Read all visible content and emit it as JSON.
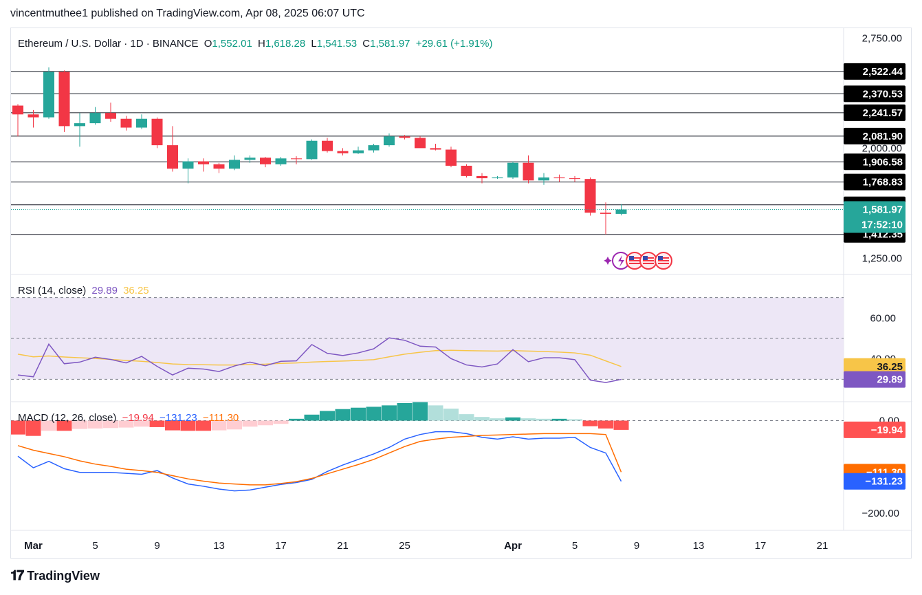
{
  "header": {
    "published": "vincentmuthee1 published on TradingView.com, Apr 08, 2025 06:07 UTC"
  },
  "footer": {
    "brand": "TradingView",
    "logo_icon": "tradingview-logo-icon"
  },
  "colors": {
    "up": "#26a69a",
    "down": "#f23645",
    "rsi": "#7e57c2",
    "rsi_ma": "#f7c548",
    "macd": "#2962ff",
    "signal": "#ff6d00",
    "hist_up_strong": "#26a69a",
    "hist_up_weak": "#b2dfdb",
    "hist_down_strong": "#ff5252",
    "hist_down_weak": "#ffcdd2",
    "rsi_band": "#ede7f6"
  },
  "chart_data": [
    {
      "type": "candlestick",
      "title": "Ethereum / U.S. Dollar · 1D · BINANCE",
      "ohlc_legend": {
        "open_label": "O",
        "open": "1,552.01",
        "high_label": "H",
        "high": "1,618.28",
        "low_label": "L",
        "low": "1,541.53",
        "close_label": "C",
        "close": "1,581.97",
        "change": "+29.61 (+1.91%)"
      },
      "x_tick_labels": [
        {
          "i": 1,
          "label": "Mar"
        },
        {
          "i": 5,
          "label": "5"
        },
        {
          "i": 9,
          "label": "9"
        },
        {
          "i": 13,
          "label": "13"
        },
        {
          "i": 17,
          "label": "17"
        },
        {
          "i": 21,
          "label": "21"
        },
        {
          "i": 25,
          "label": "25"
        },
        {
          "i": 32,
          "label": "Apr"
        },
        {
          "i": 36,
          "label": "5"
        },
        {
          "i": 40,
          "label": "9"
        },
        {
          "i": 44,
          "label": "13"
        },
        {
          "i": 48,
          "label": "17"
        },
        {
          "i": 52,
          "label": "21"
        }
      ],
      "y_tick_labels": [
        "2,750.00",
        "2,000.00",
        "1,250.00"
      ],
      "ylim": [
        1200,
        2780
      ],
      "horizontal_levels": [
        2522.44,
        2370.53,
        2241.57,
        2081.9,
        1906.58,
        1768.83,
        1613.81,
        1412.35
      ],
      "level_labels": [
        "2,522.44",
        "2,370.53",
        "2,241.57",
        "2,081.90",
        "1,906.58",
        "1,768.83",
        "1,613.81",
        "1,412.35"
      ],
      "last_price": {
        "value": 1581.97,
        "label": "1,581.97",
        "countdown": "17:52:10"
      },
      "candles": [
        {
          "o": 2290,
          "h": 2300,
          "l": 2080,
          "c": 2230
        },
        {
          "o": 2230,
          "h": 2260,
          "l": 2140,
          "c": 2210
        },
        {
          "o": 2210,
          "h": 2550,
          "l": 2200,
          "c": 2520
        },
        {
          "o": 2520,
          "h": 2530,
          "l": 2110,
          "c": 2150
        },
        {
          "o": 2150,
          "h": 2240,
          "l": 2010,
          "c": 2170
        },
        {
          "o": 2170,
          "h": 2280,
          "l": 2160,
          "c": 2240
        },
        {
          "o": 2240,
          "h": 2310,
          "l": 2180,
          "c": 2200
        },
        {
          "o": 2200,
          "h": 2220,
          "l": 2120,
          "c": 2140
        },
        {
          "o": 2140,
          "h": 2230,
          "l": 2130,
          "c": 2200
        },
        {
          "o": 2200,
          "h": 2210,
          "l": 2000,
          "c": 2020
        },
        {
          "o": 2020,
          "h": 2150,
          "l": 1840,
          "c": 1860
        },
        {
          "o": 1860,
          "h": 1930,
          "l": 1760,
          "c": 1910
        },
        {
          "o": 1910,
          "h": 1930,
          "l": 1840,
          "c": 1890
        },
        {
          "o": 1890,
          "h": 1900,
          "l": 1830,
          "c": 1860
        },
        {
          "o": 1860,
          "h": 1950,
          "l": 1850,
          "c": 1920
        },
        {
          "o": 1920,
          "h": 1950,
          "l": 1900,
          "c": 1935
        },
        {
          "o": 1935,
          "h": 1940,
          "l": 1870,
          "c": 1890
        },
        {
          "o": 1890,
          "h": 1940,
          "l": 1880,
          "c": 1930
        },
        {
          "o": 1930,
          "h": 1945,
          "l": 1890,
          "c": 1925
        },
        {
          "o": 1925,
          "h": 2060,
          "l": 1920,
          "c": 2050
        },
        {
          "o": 2050,
          "h": 2070,
          "l": 1970,
          "c": 1980
        },
        {
          "o": 1980,
          "h": 2000,
          "l": 1950,
          "c": 1965
        },
        {
          "o": 1965,
          "h": 2010,
          "l": 1960,
          "c": 1985
        },
        {
          "o": 1985,
          "h": 2030,
          "l": 1970,
          "c": 2020
        },
        {
          "o": 2020,
          "h": 2100,
          "l": 2010,
          "c": 2080
        },
        {
          "o": 2080,
          "h": 2090,
          "l": 2060,
          "c": 2070
        },
        {
          "o": 2070,
          "h": 2080,
          "l": 2010,
          "c": 2000
        },
        {
          "o": 2000,
          "h": 2030,
          "l": 1985,
          "c": 1990
        },
        {
          "o": 1990,
          "h": 2010,
          "l": 1870,
          "c": 1880
        },
        {
          "o": 1880,
          "h": 1890,
          "l": 1800,
          "c": 1810
        },
        {
          "o": 1810,
          "h": 1830,
          "l": 1760,
          "c": 1795
        },
        {
          "o": 1795,
          "h": 1810,
          "l": 1790,
          "c": 1800
        },
        {
          "o": 1800,
          "h": 1910,
          "l": 1790,
          "c": 1900
        },
        {
          "o": 1900,
          "h": 1950,
          "l": 1760,
          "c": 1780
        },
        {
          "o": 1780,
          "h": 1830,
          "l": 1750,
          "c": 1800
        },
        {
          "o": 1800,
          "h": 1820,
          "l": 1770,
          "c": 1795
        },
        {
          "o": 1795,
          "h": 1810,
          "l": 1770,
          "c": 1790
        },
        {
          "o": 1790,
          "h": 1800,
          "l": 1540,
          "c": 1560
        },
        {
          "o": 1560,
          "h": 1630,
          "l": 1412,
          "c": 1552
        },
        {
          "o": 1552.01,
          "h": 1618.28,
          "l": 1541.53,
          "c": 1581.97
        }
      ]
    },
    {
      "type": "line",
      "title": "RSI (14, close)",
      "legend_values": [
        "29.89",
        "36.25"
      ],
      "ylim": [
        20,
        80
      ],
      "y_tick_labels": [
        "60.00",
        "40.00"
      ],
      "band": [
        30,
        70
      ],
      "series": [
        {
          "values": [
            32.1,
            31.2,
            47.2,
            37.6,
            38.4,
            40.8,
            39.7,
            38.0,
            41.2,
            36.3,
            32.1,
            35.4,
            35.0,
            33.8,
            36.5,
            38.4,
            36.6,
            38.8,
            39.0,
            47.0,
            42.7,
            41.6,
            42.9,
            44.9,
            50.3,
            49.1,
            46.2,
            45.8,
            40.1,
            37.0,
            36.0,
            37.5,
            44.5,
            38.6,
            40.5,
            40.5,
            39.6,
            29.6,
            28.4,
            29.89
          ]
        },
        {
          "values": [
            42.3,
            41.0,
            41.4,
            40.9,
            40.5,
            40.2,
            39.7,
            39.2,
            38.8,
            38.2,
            37.5,
            37.2,
            37.1,
            37.0,
            37.0,
            37.2,
            37.4,
            37.8,
            38.0,
            38.4,
            38.7,
            38.9,
            39.2,
            39.6,
            41.0,
            42.3,
            43.2,
            44.0,
            44.2,
            44.0,
            43.9,
            43.8,
            44.0,
            43.8,
            43.6,
            43.3,
            42.9,
            41.8,
            39.0,
            36.25
          ]
        }
      ],
      "last_labels": [
        "36.25",
        "29.89"
      ]
    },
    {
      "type": "bar+line",
      "title": "MACD (12, 26, close)",
      "legend_values": [
        "−19.94",
        "−131.23",
        "−111.30"
      ],
      "ylim": [
        -215,
        35
      ],
      "y_tick_labels": [
        "0.00",
        "−200.00"
      ],
      "histogram": [
        -30,
        -33,
        -22,
        -22,
        -18,
        -17,
        -16,
        -15,
        -13,
        -14,
        -21,
        -22,
        -22,
        -21,
        -19,
        -13,
        -10,
        -7,
        4,
        13,
        21,
        25,
        28,
        30,
        33,
        38,
        40,
        33,
        26,
        14,
        8,
        5,
        7,
        5,
        4,
        4,
        3,
        -12,
        -17,
        -19.94
      ],
      "series": [
        {
          "values": [
            -77,
            -102,
            -88,
            -104,
            -112,
            -112,
            -112,
            -114,
            -116,
            -108,
            -124,
            -137,
            -142,
            -148,
            -152,
            -150,
            -144,
            -138,
            -134,
            -127,
            -110,
            -96,
            -84,
            -72,
            -58,
            -40,
            -30,
            -24,
            -24,
            -28,
            -36,
            -40,
            -35,
            -40,
            -38,
            -38,
            -36,
            -58,
            -70,
            -131.23
          ]
        },
        {
          "values": [
            -54,
            -64,
            -71,
            -78,
            -87,
            -94,
            -99,
            -105,
            -108,
            -112,
            -119,
            -126,
            -131,
            -135,
            -137,
            -139,
            -139,
            -136,
            -132,
            -125,
            -115,
            -105,
            -95,
            -84,
            -70,
            -56,
            -45,
            -40,
            -36,
            -34,
            -32,
            -31,
            -30,
            -29,
            -28,
            -28,
            -28,
            -28,
            -30,
            -111.3
          ]
        }
      ],
      "last_labels": [
        "−19.94",
        "−111.30",
        "−131.23"
      ]
    }
  ]
}
